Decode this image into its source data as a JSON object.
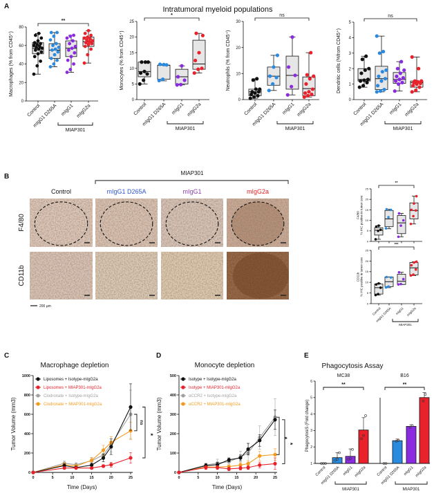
{
  "colors": {
    "control": "#111111",
    "d265a": "#2a8ae0",
    "migg1": "#8a2be2",
    "migg2a": "#e8212a",
    "box_fill": "#e6e6e6",
    "grey": "#a0a0a0",
    "orange": "#f39a1e"
  },
  "panel_labels": [
    "A",
    "B",
    "C",
    "D",
    "E"
  ],
  "panelA": {
    "title": "Intratumoral myeloid populations"
  },
  "panelB": {
    "group_label": "MIAP301",
    "columns": [
      {
        "label": "Control",
        "color": "#111111"
      },
      {
        "label": "mIgG1 D265A",
        "color": "#2f55d4"
      },
      {
        "label": "mIgG1",
        "color": "#8a3fb0"
      },
      {
        "label": "mIgG2a",
        "color": "#e02020"
      }
    ],
    "rows": [
      "F4/80",
      "CD11b"
    ],
    "scale_bar": "200 µm"
  },
  "chart_data": [
    {
      "id": "A1",
      "type": "box",
      "ylabel": "Macrophages (% from CD45⁺)",
      "ylim": [
        0,
        80
      ],
      "yticks": [
        0,
        20,
        40,
        60,
        80
      ],
      "categories": [
        "Control",
        "mIgG1 D265A",
        "mIgG1",
        "mIgG2a"
      ],
      "group_label": "MIAP301",
      "significance": {
        "label": "**",
        "from": 0,
        "to": 3
      },
      "groups": [
        {
          "min": 29,
          "q1": 51,
          "median": 57,
          "q3": 63,
          "max": 73,
          "points": [
            29,
            38,
            43,
            48,
            51,
            53,
            55,
            56,
            57,
            58,
            59,
            60,
            61,
            62,
            63,
            65,
            68,
            71,
            73
          ]
        },
        {
          "min": 37,
          "q1": 46,
          "median": 55,
          "q3": 62,
          "max": 74,
          "points": [
            37,
            40,
            44,
            46,
            50,
            53,
            55,
            56,
            58,
            60,
            62,
            66,
            70,
            74,
            74
          ]
        },
        {
          "min": 31,
          "q1": 48,
          "median": 57,
          "q3": 65,
          "max": 71,
          "points": [
            31,
            34,
            40,
            44,
            48,
            52,
            55,
            57,
            59,
            62,
            65,
            68,
            70,
            71
          ]
        },
        {
          "min": 41,
          "q1": 59,
          "median": 64,
          "q3": 69,
          "max": 76,
          "points": [
            41,
            50,
            56,
            59,
            61,
            62,
            63,
            64,
            65,
            66,
            67,
            68,
            69,
            71,
            73,
            76
          ]
        }
      ]
    },
    {
      "id": "A2",
      "type": "box",
      "ylabel": "Monocytes (% from CD45⁺)",
      "ylim": [
        0,
        25
      ],
      "yticks": [
        0,
        5,
        10,
        15,
        20,
        25
      ],
      "categories": [
        "Control",
        "mIgG1 D265A",
        "mIgG1",
        "mIgG2a"
      ],
      "group_label": "MIAP301",
      "significance": {
        "label": "*",
        "from": 0,
        "to": 3
      },
      "groups": [
        {
          "min": 5,
          "q1": 7.3,
          "median": 9,
          "q3": 12,
          "max": 12,
          "points": [
            5,
            6.2,
            8.2,
            8.5,
            9,
            12,
            12,
            12
          ]
        },
        {
          "min": 6,
          "q1": 6.5,
          "median": 11,
          "q3": 11,
          "max": 11.3,
          "points": [
            6.1,
            6.5,
            11.1,
            11.3,
            11.2
          ]
        },
        {
          "min": 4.7,
          "q1": 5,
          "median": 7.3,
          "q3": 9.7,
          "max": 10.8,
          "points": [
            4.7,
            4.8,
            6.2,
            7.3,
            10.8
          ]
        },
        {
          "min": 8.5,
          "q1": 9.7,
          "median": 11.4,
          "q3": 19,
          "max": 21.2,
          "points": [
            8.5,
            9.7,
            10,
            12.5,
            15,
            20.5,
            21.2
          ]
        }
      ]
    },
    {
      "id": "A3",
      "type": "box",
      "ylabel": "Neutrophils (% from CD45⁺)",
      "ylim": [
        0,
        30
      ],
      "yticks": [
        0,
        10,
        20,
        30
      ],
      "categories": [
        "Control",
        "mIgG1 D265A",
        "mIgG1",
        "mIgG2a"
      ],
      "group_label": "MIAP301",
      "significance": {
        "label": "ns",
        "from": 0,
        "to": 3
      },
      "groups": [
        {
          "min": 0.5,
          "q1": 1.5,
          "median": 3,
          "q3": 4,
          "max": 8,
          "points": [
            0.5,
            1,
            1.5,
            2,
            2.5,
            3,
            3,
            4,
            4,
            7.5,
            8
          ]
        },
        {
          "min": 3.5,
          "q1": 5.5,
          "median": 9,
          "q3": 12.5,
          "max": 17,
          "points": [
            3.5,
            6,
            8.5,
            9,
            12.5,
            17
          ]
        },
        {
          "min": 1.8,
          "q1": 4,
          "median": 9.3,
          "q3": 16.7,
          "max": 24,
          "points": [
            1.8,
            5,
            9.3,
            12.5,
            24
          ]
        },
        {
          "min": 1,
          "q1": 1.5,
          "median": 4.2,
          "q3": 8.7,
          "max": 18,
          "points": [
            1,
            1.5,
            2,
            2.5,
            3,
            4,
            6,
            8,
            9,
            9.5,
            18
          ]
        }
      ]
    },
    {
      "id": "A4",
      "type": "box",
      "ylabel": "Dendritic cells (%from CD45⁺)",
      "ylim": [
        0,
        5
      ],
      "yticks": [
        0,
        1,
        2,
        3,
        4,
        5
      ],
      "categories": [
        "Control",
        "mIgG1 D265A",
        "mIgG1",
        "mIgG2a"
      ],
      "group_label": "MIAP301",
      "significance": {
        "label": "ns",
        "from": 0,
        "to": 3
      },
      "groups": [
        {
          "min": 0.8,
          "q1": 1.2,
          "median": 1.3,
          "q3": 2,
          "max": 2.8,
          "points": [
            0.8,
            0.9,
            1.1,
            1.2,
            1.25,
            1.3,
            1.7,
            1.9,
            2,
            2.6,
            2.8
          ]
        },
        {
          "min": 0.5,
          "q1": 0.65,
          "median": 1.35,
          "q3": 2.15,
          "max": 4.1,
          "points": [
            0.5,
            0.55,
            0.65,
            0.9,
            1.2,
            1.35,
            1.5,
            1.8,
            1.9,
            3,
            3.1,
            4.1
          ]
        },
        {
          "min": 0.55,
          "q1": 1.05,
          "median": 1.3,
          "q3": 1.75,
          "max": 2.45,
          "points": [
            0.55,
            1,
            1.1,
            1.2,
            1.3,
            1.4,
            1.5,
            1.7,
            1.9,
            2,
            2.45
          ]
        },
        {
          "min": 0.5,
          "q1": 0.8,
          "median": 1.1,
          "q3": 1.2,
          "max": 2.75,
          "points": [
            0.5,
            0.6,
            0.8,
            0.9,
            1,
            1.05,
            1.1,
            1.15,
            1.2,
            1.2,
            2,
            2.75
          ]
        }
      ]
    },
    {
      "id": "B1",
      "type": "box",
      "ylabel": "F4/80\n% IHC positive in tumor core",
      "ylim": [
        0,
        25
      ],
      "yticks": [
        0,
        5,
        10,
        15,
        20,
        25
      ],
      "categories": [
        "Control",
        "mIgG1 D265A",
        "mIgG1",
        "mIgG2a"
      ],
      "significance": {
        "label": "**",
        "from": 0,
        "to": 3
      },
      "groups": [
        {
          "min": 1,
          "q1": 3,
          "median": 5.3,
          "q3": 6.5,
          "max": 7.5,
          "points": [
            1,
            5,
            5.5,
            7,
            7.5
          ]
        },
        {
          "min": 6,
          "q1": 7,
          "median": 10.7,
          "q3": 14.7,
          "max": 15.3,
          "points": [
            6.2,
            11.5,
            15,
            15.3
          ]
        },
        {
          "min": 2.2,
          "q1": 3.7,
          "median": 8.8,
          "q3": 12.3,
          "max": 13.3,
          "points": [
            2.2,
            7.5,
            10,
            13.3
          ]
        },
        {
          "min": 8.3,
          "q1": 10.7,
          "median": 14.7,
          "q3": 18.3,
          "max": 21.5,
          "points": [
            8.3,
            12,
            14.7,
            15,
            18,
            21.5
          ]
        }
      ]
    },
    {
      "id": "B2",
      "type": "box",
      "ylabel": "CD11b\n% IHC positive in tumor core",
      "ylim": [
        0,
        25
      ],
      "yticks": [
        0,
        5,
        10,
        15,
        20,
        25
      ],
      "categories": [
        "Control",
        "mIgG1 D265A",
        "mIgG1",
        "mIgG2a"
      ],
      "group_label": "MIAP301",
      "significance": {
        "label": "***",
        "from": 0,
        "to": 3
      },
      "groups": [
        {
          "min": 4,
          "q1": 4.5,
          "median": 7.5,
          "q3": 9.2,
          "max": 9.5,
          "points": [
            4,
            4.5,
            7.5,
            9,
            9.5
          ]
        },
        {
          "min": 7.5,
          "q1": 8,
          "median": 10.3,
          "q3": 12.5,
          "max": 12.5,
          "points": [
            7.6,
            8,
            12.3,
            12.5
          ]
        },
        {
          "min": 9,
          "q1": 9,
          "median": 10.5,
          "q3": 13.8,
          "max": 14.7,
          "points": [
            9,
            9.2,
            11.5,
            14.7
          ]
        },
        {
          "min": 13.2,
          "q1": 13.5,
          "median": 16.8,
          "q3": 19.3,
          "max": 19.7,
          "points": [
            13.2,
            13.6,
            16,
            18,
            19.3,
            19.7
          ]
        }
      ]
    },
    {
      "id": "C",
      "type": "line",
      "title": "Macrophage depletion",
      "xlabel": "Time (Days)",
      "ylabel": "Tumor Volume (mm3)",
      "xlim": [
        0,
        25
      ],
      "ylim": [
        0,
        1000
      ],
      "xticks": [
        0,
        5,
        10,
        15,
        20,
        25
      ],
      "yticks": [
        0,
        200,
        400,
        600,
        800,
        1000
      ],
      "legend": "top-left",
      "x": [
        0,
        8,
        11,
        15,
        18,
        20,
        25
      ],
      "series": [
        {
          "name": "Liposomes + Isotype-mIgG2a",
          "color": "#111111",
          "values": [
            0,
            70,
            50,
            75,
            150,
            265,
            675
          ],
          "errors": [
            0,
            20,
            15,
            20,
            40,
            80,
            240
          ]
        },
        {
          "name": "Liposomes + MIAP301-mIgG2a",
          "color": "#e8212a",
          "values": [
            0,
            45,
            45,
            45,
            65,
            80,
            150
          ],
          "errors": [
            0,
            10,
            10,
            10,
            15,
            25,
            55
          ]
        },
        {
          "name": "Clodronate + Isotype-mIgG2a",
          "color": "#a0a0a0",
          "values": [
            0,
            95,
            80,
            120,
            180,
            290,
            600
          ],
          "errors": [
            0,
            25,
            20,
            30,
            50,
            80,
            250
          ]
        },
        {
          "name": "Clodronate + MIAP301-mIgG2a",
          "color": "#f39a1e",
          "values": [
            0,
            80,
            65,
            125,
            230,
            310,
            430
          ],
          "errors": [
            0,
            20,
            15,
            30,
            50,
            60,
            90
          ]
        }
      ],
      "significance": [
        {
          "label": "ns",
          "series": [
            2,
            3
          ]
        },
        {
          "label": "*",
          "series": [
            0,
            1
          ]
        }
      ]
    },
    {
      "id": "D",
      "type": "line",
      "title": "Monocyte depletion",
      "xlabel": "Time (Days)",
      "ylabel": "Tumor Volume (mm3)",
      "xlim": [
        0,
        25
      ],
      "ylim": [
        0,
        500
      ],
      "xticks": [
        0,
        5,
        10,
        15,
        20,
        25
      ],
      "yticks": [
        0,
        100,
        200,
        300,
        400,
        500
      ],
      "legend": "top-left",
      "x": [
        0,
        7,
        10,
        13,
        16,
        18,
        21,
        25
      ],
      "series": [
        {
          "name": "Isotype + Isotype-mIgG2a",
          "color": "#111111",
          "values": [
            0,
            35,
            40,
            65,
            75,
            120,
            165,
            272
          ],
          "errors": [
            0,
            10,
            12,
            10,
            15,
            30,
            30,
            50
          ]
        },
        {
          "name": "Isotype + MIAP301-mIgG2a",
          "color": "#e8212a",
          "values": [
            0,
            25,
            25,
            18,
            22,
            25,
            38,
            45
          ],
          "errors": [
            0,
            10,
            10,
            10,
            10,
            10,
            15,
            30
          ]
        },
        {
          "name": "αCCR2 + Isotype-mIgG2a",
          "color": "#a0a0a0",
          "values": [
            0,
            38,
            48,
            55,
            80,
            100,
            180,
            285
          ],
          "errors": [
            0,
            10,
            20,
            15,
            30,
            50,
            60,
            95
          ]
        },
        {
          "name": "αCCR2 + MIAP301-mIgG2a",
          "color": "#f39a1e",
          "values": [
            0,
            28,
            28,
            30,
            38,
            45,
            85,
            92
          ],
          "errors": [
            0,
            8,
            8,
            10,
            12,
            15,
            25,
            30
          ]
        }
      ],
      "significance": [
        {
          "label": "*",
          "series": [
            0,
            1
          ]
        },
        {
          "label": "*",
          "series": [
            2,
            3
          ]
        }
      ]
    },
    {
      "id": "E",
      "type": "bar",
      "title": "Phagocytosis Assay",
      "ylabel": "PhagocytosiS (Fold change)",
      "ylim": [
        1,
        6
      ],
      "yticks": [
        1,
        2,
        3,
        4,
        5,
        6
      ],
      "group_label": "MIAP301",
      "panels": [
        {
          "name": "MC38",
          "categories": [
            "Control",
            "mIgG1 D265A",
            "mIgG1",
            "mIgG2a"
          ],
          "values": [
            1,
            1.35,
            1.43,
            3.03
          ],
          "errors": [
            0,
            0.3,
            0.45,
            0.75
          ],
          "points": [
            [
              1,
              1,
              1
            ],
            [
              1.2,
              1.25,
              1.65
            ],
            [
              1.25,
              1.3,
              1.85
            ],
            [
              2.5,
              2.7,
              3.9
            ]
          ],
          "significance": "**"
        },
        {
          "name": "B16",
          "categories": [
            "Control",
            "mIgG1 D265A",
            "mIgG1",
            "mIgG2a"
          ],
          "values": [
            1,
            2.38,
            3.25,
            5.0
          ],
          "errors": [
            0,
            0.1,
            0.1,
            0.3
          ],
          "points": [
            [
              1,
              1
            ],
            [
              2.35,
              2.4
            ],
            [
              3.2,
              3.3
            ],
            [
              4.8,
              5.2
            ]
          ],
          "significance": "**"
        }
      ]
    }
  ]
}
